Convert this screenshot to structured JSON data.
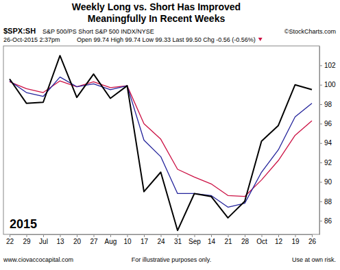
{
  "chart_data": {
    "type": "line",
    "title": "Weekly Long vs. Short Has Improved",
    "subtitle": "Meaningfully In Recent Weeks",
    "symbol": "$SPX:SH",
    "description": "S&P 500/PS Short S&P 500 INDX/NYSE",
    "source": "©StockCharts.com",
    "date": "26-Oct-2015 2:37pm",
    "quote": "Open 99.74 High 99.74 Low 99.33 Last 99.50 Chg -0.56 (-0.56%)",
    "annotation": "2015",
    "footer": [
      "www.ciovaccocapital.com",
      "For illustrative purposes only.",
      "Use at own risk."
    ],
    "categories": [
      "22",
      "29",
      "Jul",
      "13",
      "20",
      "27",
      "Aug",
      "10",
      "17",
      "24",
      "31",
      "Sep",
      "14",
      "21",
      "28",
      "Oct",
      "12",
      "19",
      "26"
    ],
    "series": [
      {
        "color": "#000000",
        "values": [
          100.6,
          98.1,
          98.2,
          103.0,
          98.7,
          101.1,
          98.6,
          99.9,
          89.0,
          91.0,
          85.0,
          88.8,
          88.5,
          86.3,
          88.0,
          94.2,
          95.8,
          100.0,
          99.5
        ]
      },
      {
        "color": "#23239b",
        "values": [
          100.4,
          99.2,
          98.8,
          100.8,
          99.8,
          100.1,
          99.5,
          99.9,
          94.3,
          92.6,
          88.8,
          88.8,
          88.6,
          87.4,
          87.8,
          91.0,
          93.3,
          96.7,
          98.1
        ]
      },
      {
        "color": "#cc1144",
        "values": [
          100.3,
          99.6,
          99.2,
          100.4,
          99.8,
          100.3,
          99.7,
          99.9,
          96.0,
          94.4,
          91.3,
          90.5,
          89.8,
          88.6,
          88.5,
          90.2,
          92.2,
          94.8,
          96.3
        ]
      }
    ],
    "ylim": [
      84.6,
      104
    ],
    "yticks": [
      86,
      88,
      90,
      92,
      94,
      96,
      98,
      100,
      102
    ],
    "grid": false
  }
}
